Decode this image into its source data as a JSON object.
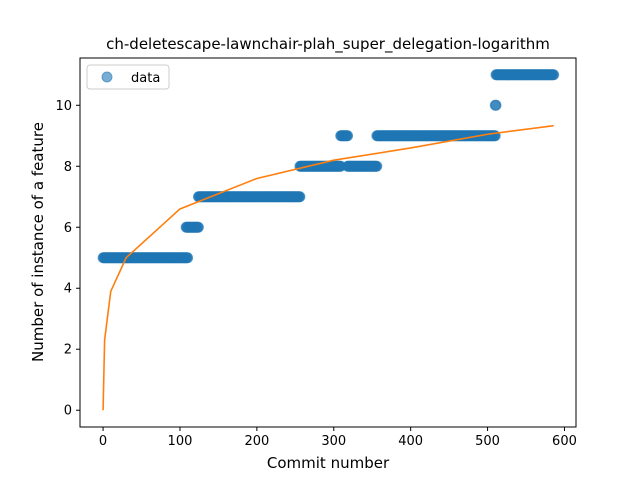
{
  "chart_data": {
    "type": "scatter",
    "title": "ch-deletescape-lawnchair-plah_super_delegation-logarithm",
    "xlabel": "Commit number",
    "ylabel": "Number of instance of a feature",
    "xlim": [
      -30,
      615
    ],
    "ylim": [
      -0.55,
      11.55
    ],
    "xticks": [
      0,
      100,
      200,
      300,
      400,
      500,
      600
    ],
    "yticks": [
      0,
      2,
      4,
      6,
      8,
      10
    ],
    "legend": {
      "placement": "top-left",
      "entries": [
        "data"
      ]
    },
    "colors": {
      "data": "#1f77b4",
      "fit": "#ff7f0e"
    },
    "series": [
      {
        "name": "data",
        "kind": "scatter",
        "segments": [
          {
            "x_start": 0,
            "x_end": 110,
            "y": 5
          },
          {
            "x_start": 108,
            "x_end": 124,
            "y": 6
          },
          {
            "x_start": 124,
            "x_end": 256,
            "y": 7
          },
          {
            "x_start": 256,
            "x_end": 309,
            "y": 8
          },
          {
            "x_start": 309,
            "x_end": 318,
            "y": 9
          },
          {
            "x_start": 318,
            "x_end": 356,
            "y": 8
          },
          {
            "x_start": 356,
            "x_end": 510,
            "y": 9
          },
          {
            "x_start": 510,
            "x_end": 511,
            "y": 10
          },
          {
            "x_start": 511,
            "x_end": 586,
            "y": 11
          }
        ]
      },
      {
        "kind": "line",
        "model": "logarithmic",
        "x_range": [
          0,
          586
        ],
        "points": [
          [
            0,
            0
          ],
          [
            2,
            2.3
          ],
          [
            10,
            3.9
          ],
          [
            30,
            5.0
          ],
          [
            100,
            6.6
          ],
          [
            200,
            7.6
          ],
          [
            300,
            8.2
          ],
          [
            400,
            8.6
          ],
          [
            500,
            9.05
          ],
          [
            586,
            9.33
          ]
        ]
      }
    ]
  }
}
